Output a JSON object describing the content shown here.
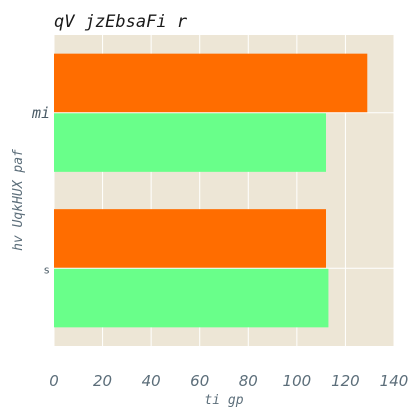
{
  "chart_data": {
    "type": "bar",
    "orientation": "horizontal",
    "title": "qV jzEbsaFi r",
    "xlabel": "ti gp",
    "ylabel": "hv UqkHUX paf",
    "categories": [
      "mi",
      "s"
    ],
    "series": [
      {
        "color": "#ff6d00",
        "values": [
          129,
          112
        ]
      },
      {
        "color": "#69ff8a",
        "values": [
          112,
          113
        ]
      }
    ],
    "xlim": [
      0,
      140
    ],
    "xticks": [
      "0",
      "20",
      "40",
      "60",
      "80",
      "100",
      "120",
      "140"
    ],
    "grid": true,
    "background": "#ede6d6"
  }
}
